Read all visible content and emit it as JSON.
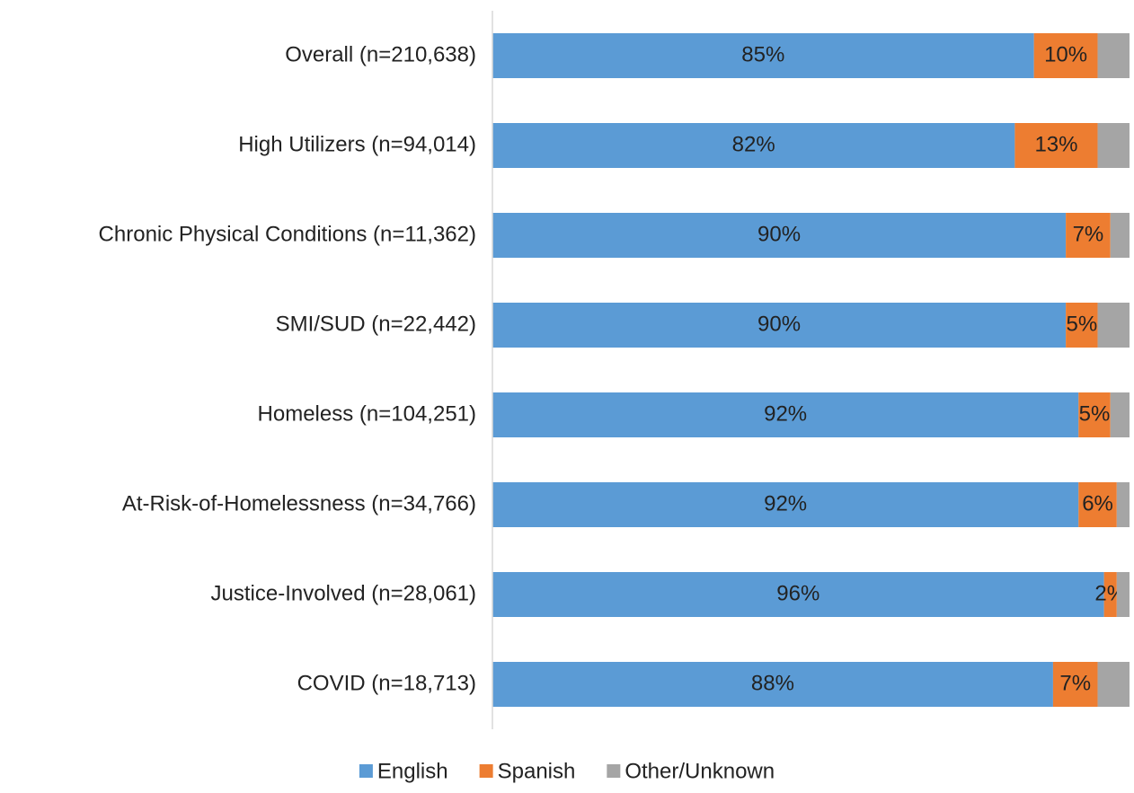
{
  "chart_data": {
    "type": "stacked_barh",
    "categories": [
      "Overall (n=210,638)",
      "High Utilizers (n=94,014)",
      "Chronic Physical Conditions (n=11,362)",
      "SMI/SUD (n=22,442)",
      "Homeless (n=104,251)",
      "At-Risk-of-Homelessness (n=34,766)",
      "Justice-Involved (n=28,061)",
      "COVID (n=18,713)"
    ],
    "series": [
      {
        "name": "English",
        "color": "#5b9bd5",
        "values": [
          85,
          82,
          90,
          90,
          92,
          92,
          96,
          88
        ],
        "value_labels": [
          "85%",
          "82%",
          "90%",
          "90%",
          "92%",
          "92%",
          "96%",
          "88%"
        ]
      },
      {
        "name": "Spanish",
        "color": "#ed7d31",
        "values": [
          10,
          13,
          7,
          5,
          5,
          6,
          2,
          7
        ],
        "value_labels": [
          "10%",
          "13%",
          "7%",
          "5%",
          "5%",
          "6%",
          "2%",
          "7%"
        ]
      },
      {
        "name": "Other/Unknown",
        "color": "#a5a5a5",
        "values": [
          5,
          5,
          3,
          5,
          3,
          2,
          2,
          5
        ]
      }
    ],
    "xlim": [
      0,
      100
    ],
    "legend": "bottom"
  }
}
